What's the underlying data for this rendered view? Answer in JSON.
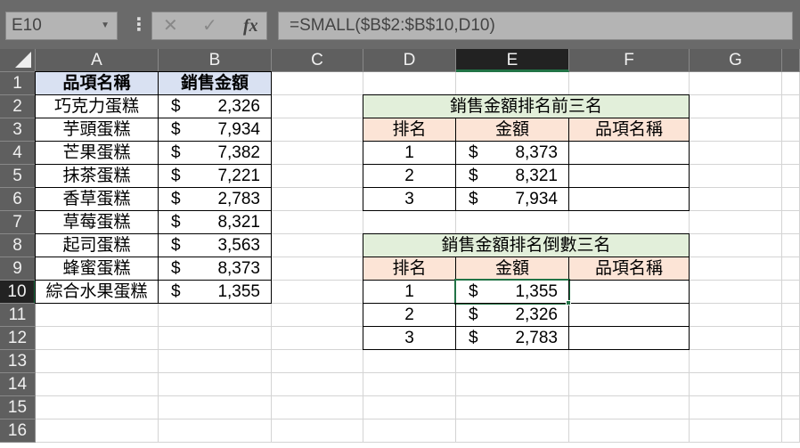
{
  "formula_bar": {
    "name_box": "E10",
    "formula": "=SMALL($B$2:$B$10,D10)",
    "cancel_icon": "✕",
    "enter_icon": "✓",
    "fx_icon": "fx"
  },
  "columns": [
    "A",
    "B",
    "C",
    "D",
    "E",
    "F",
    "G"
  ],
  "rows": [
    "1",
    "2",
    "3",
    "4",
    "5",
    "6",
    "7",
    "8",
    "9",
    "10",
    "11",
    "12",
    "13",
    "14",
    "15",
    "16"
  ],
  "selected": {
    "cell": "E10",
    "column": "E",
    "row": "10"
  },
  "colors": {
    "header_fill": "#d9e1f2",
    "title_fill": "#e2efda",
    "subheader_fill": "#fce4d6",
    "selection": "#217346"
  },
  "sales_table": {
    "headers": [
      "品項名稱",
      "銷售金額"
    ],
    "rows": [
      {
        "name": "巧克力蛋糕",
        "cur": "$",
        "amount": "2,326"
      },
      {
        "name": "芋頭蛋糕",
        "cur": "$",
        "amount": "7,934"
      },
      {
        "name": "芒果蛋糕",
        "cur": "$",
        "amount": "7,382"
      },
      {
        "name": "抹茶蛋糕",
        "cur": "$",
        "amount": "7,221"
      },
      {
        "name": "香草蛋糕",
        "cur": "$",
        "amount": "2,783"
      },
      {
        "name": "草莓蛋糕",
        "cur": "$",
        "amount": "8,321"
      },
      {
        "name": "起司蛋糕",
        "cur": "$",
        "amount": "3,563"
      },
      {
        "name": "蜂蜜蛋糕",
        "cur": "$",
        "amount": "8,373"
      },
      {
        "name": "綜合水果蛋糕",
        "cur": "$",
        "amount": "1,355"
      }
    ]
  },
  "top3": {
    "title": "銷售金額排名前三名",
    "headers": [
      "排名",
      "金額",
      "品項名稱"
    ],
    "rows": [
      {
        "rank": "1",
        "cur": "$",
        "amount": "8,373",
        "name": ""
      },
      {
        "rank": "2",
        "cur": "$",
        "amount": "8,321",
        "name": ""
      },
      {
        "rank": "3",
        "cur": "$",
        "amount": "7,934",
        "name": ""
      }
    ]
  },
  "bottom3": {
    "title": "銷售金額排名倒數三名",
    "headers": [
      "排名",
      "金額",
      "品項名稱"
    ],
    "rows": [
      {
        "rank": "1",
        "cur": "$",
        "amount": "1,355",
        "name": ""
      },
      {
        "rank": "2",
        "cur": "$",
        "amount": "2,326",
        "name": ""
      },
      {
        "rank": "3",
        "cur": "$",
        "amount": "2,783",
        "name": ""
      }
    ]
  }
}
